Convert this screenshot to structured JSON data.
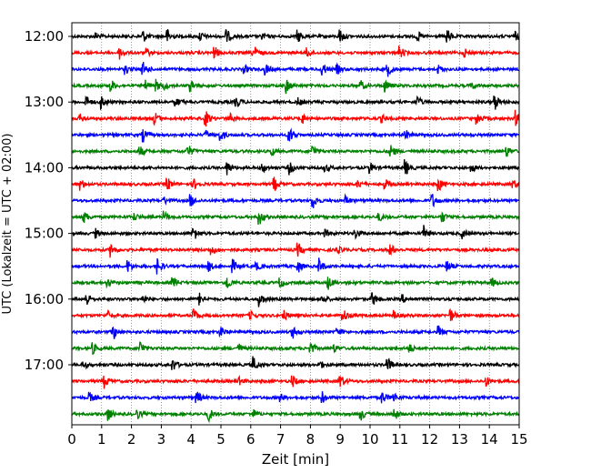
{
  "chart_data": {
    "type": "line",
    "title": "",
    "xlabel": "Zeit  [min]",
    "ylabel": "UTC (Lokalzeit = UTC + 02:00)",
    "xlim": [
      0,
      15
    ],
    "x_ticks": [
      0,
      1,
      2,
      3,
      4,
      5,
      6,
      7,
      8,
      9,
      10,
      11,
      12,
      13,
      14,
      15
    ],
    "x_grid": "dotted vertical lines at each minute",
    "y_ticks": [
      "12:00",
      "13:00",
      "14:00",
      "15:00",
      "16:00",
      "17:00"
    ],
    "y_tick_rows": [
      0,
      4,
      8,
      12,
      16,
      20
    ],
    "rows_per_hour": 4,
    "minutes_per_row": 15,
    "row_count": 24,
    "row_start_times": [
      "12:00",
      "12:15",
      "12:30",
      "12:45",
      "13:00",
      "13:15",
      "13:30",
      "13:45",
      "14:00",
      "14:15",
      "14:30",
      "14:45",
      "15:00",
      "15:15",
      "15:30",
      "15:45",
      "16:00",
      "16:15",
      "16:30",
      "16:45",
      "17:00",
      "17:15",
      "17:30",
      "17:45"
    ],
    "trace_colors": [
      "#000000",
      "#ff0000",
      "#0000ff",
      "#008000"
    ],
    "events": [
      [
        0.8,
        2.4,
        3.2,
        4.3,
        5.2,
        6.4,
        7.6,
        9.0,
        11.6,
        12.6,
        14.9
      ],
      [
        1.6,
        2.5,
        4.8,
        6.1,
        7.9,
        11.0,
        13.2
      ],
      [
        1.8,
        2.4,
        5.8,
        6.5,
        8.4,
        8.9,
        10.6,
        12.3
      ],
      [
        1.3,
        2.5,
        2.8,
        3.1,
        4.0,
        7.2,
        9.7,
        10.5,
        13.4
      ],
      [
        0.5,
        1.0,
        3.5,
        5.5,
        7.6,
        11.6,
        14.2
      ],
      [
        0.3,
        2.8,
        4.5,
        5.3,
        7.7,
        10.4,
        13.6,
        14.9
      ],
      [
        2.4,
        4.5,
        5.0,
        7.3,
        11.2
      ],
      [
        2.3,
        3.9,
        6.7,
        8.1,
        10.7,
        14.6
      ],
      [
        5.2,
        6.4,
        7.3,
        8.5,
        10.0,
        11.2,
        13.4
      ],
      [
        0.3,
        3.2,
        4.1,
        6.8,
        9.6,
        10.5,
        12.3,
        14.8
      ],
      [
        3.1,
        4.0,
        8.1,
        9.2,
        12.1
      ],
      [
        0.4,
        2.1,
        3.1,
        6.3,
        10.3,
        12.4
      ],
      [
        0.8,
        4.1,
        8.5,
        9.5,
        11.8,
        13.1
      ],
      [
        1.3,
        4.7,
        7.6,
        8.9,
        10.7
      ],
      [
        1.9,
        2.9,
        4.6,
        5.4,
        6.2,
        7.6,
        8.3,
        12.6
      ],
      [
        1.2,
        3.4,
        5.2,
        7.0,
        8.6,
        14.1
      ],
      [
        0.5,
        2.4,
        4.3,
        6.3,
        8.4,
        10.1,
        11.1
      ],
      [
        1.2,
        4.1,
        6.0,
        7.1,
        9.1,
        10.8,
        12.7
      ],
      [
        1.4,
        5.0,
        7.4,
        8.9,
        12.3
      ],
      [
        0.7,
        2.3,
        5.6,
        8.0,
        8.8,
        11.3
      ],
      [
        0.4,
        3.4,
        6.1,
        8.3,
        10.6
      ],
      [
        1.1,
        5.6,
        7.4,
        9.0,
        13.9
      ],
      [
        0.6,
        4.2,
        7.0,
        8.4,
        10.4,
        10.8
      ],
      [
        1.2,
        2.2,
        4.6,
        6.1,
        9.7,
        10.8
      ]
    ]
  }
}
